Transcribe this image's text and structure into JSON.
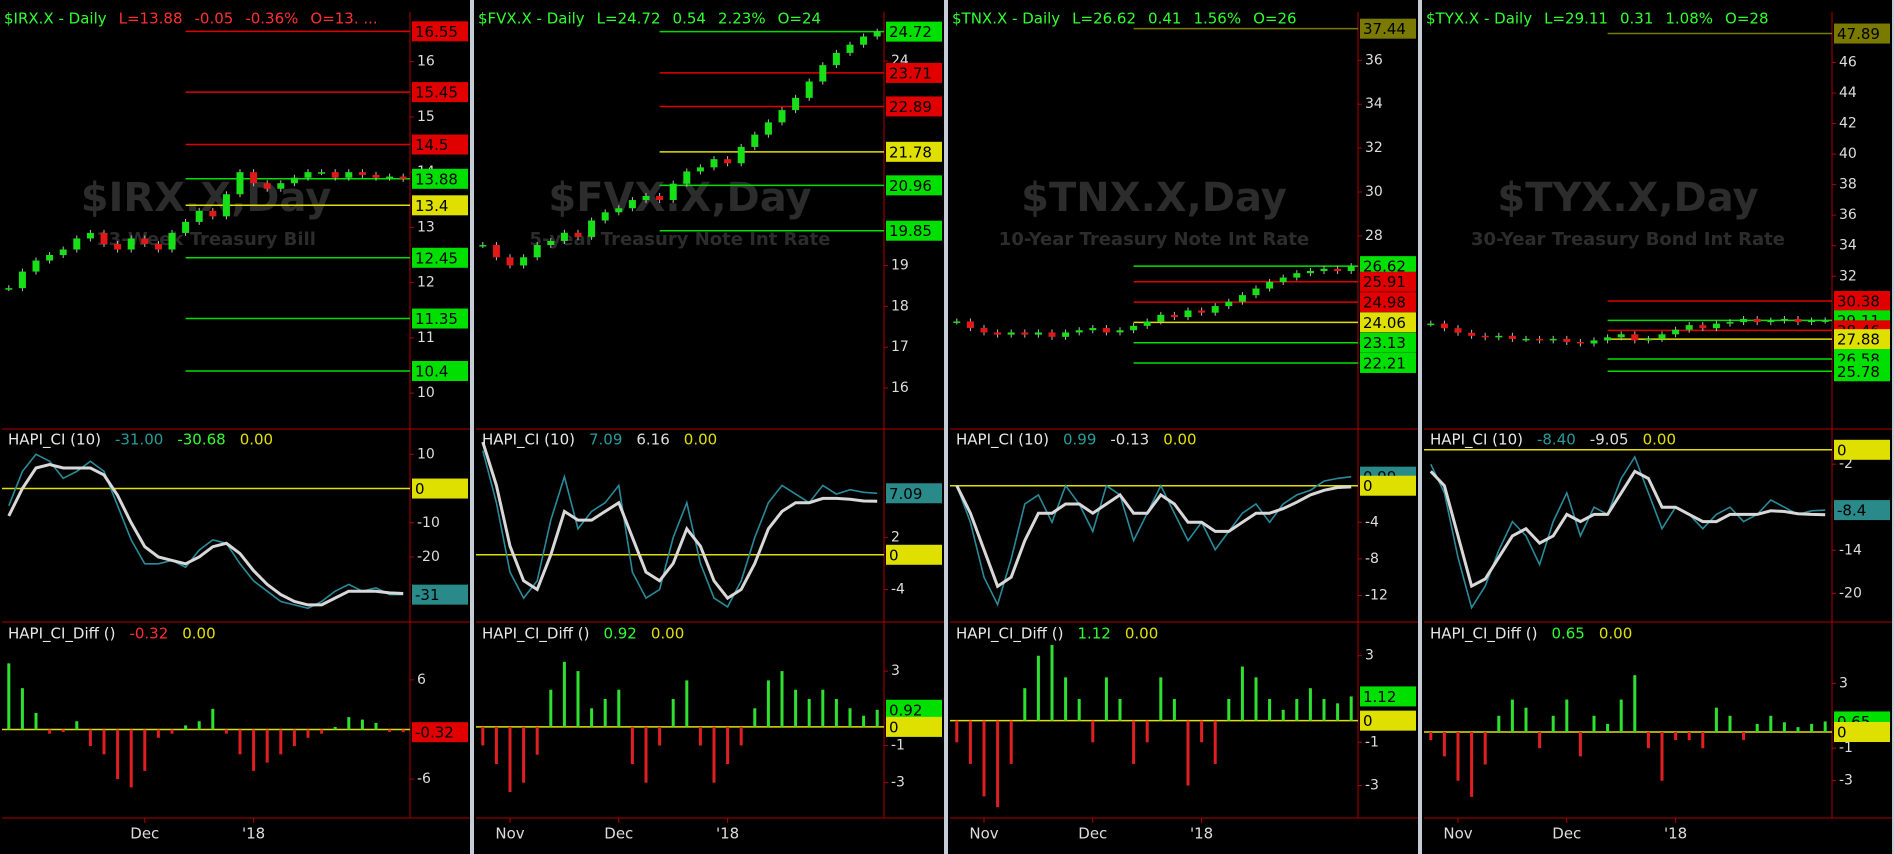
{
  "panels": [
    {
      "header": {
        "symbol": "$IRX.X - Daily",
        "last": "L=13.88",
        "change": "-0.05",
        "pct": "-0.36%",
        "open": "O=13. ...",
        "color": "#ff3030"
      },
      "watermark": "$IRX.X,Day",
      "subtitle": "13-Week Treasury Bill",
      "price": {
        "ylim": [
          9.35,
          16.9
        ],
        "yticks": [
          10,
          11,
          12,
          13,
          14,
          15,
          16
        ],
        "close": [
          11.9,
          12.2,
          12.4,
          12.5,
          12.6,
          12.8,
          12.9,
          12.7,
          12.6,
          12.8,
          12.7,
          12.6,
          12.9,
          13.1,
          13.3,
          13.2,
          13.6,
          14.0,
          13.8,
          13.7,
          13.8,
          13.9,
          14.0,
          14.0,
          13.9,
          14.0,
          13.95,
          13.9,
          13.92,
          13.88
        ],
        "tags": [
          {
            "value": 16.55,
            "color": "#e00000"
          },
          {
            "value": 15.45,
            "color": "#e00000"
          },
          {
            "value": 14.5,
            "color": "#e00000"
          },
          {
            "value": 13.88,
            "color": "#00e000"
          },
          {
            "value": 13.4,
            "color": "#e0e000"
          },
          {
            "value": 12.45,
            "color": "#00e000"
          },
          {
            "value": 11.35,
            "color": "#00e000"
          },
          {
            "value": 10.4,
            "color": "#00e000"
          }
        ]
      },
      "ci": {
        "label": "HAPI_CI (10)",
        "readouts": [
          {
            "text": "-31.00",
            "color": "#2a9a9a"
          },
          {
            "text": "-30.68",
            "color": "#30ff30"
          },
          {
            "text": "0.00",
            "color": "#e0e000"
          }
        ],
        "ylim": [
          -39,
          17.4
        ],
        "yticks": [
          10,
          -10,
          -20
        ],
        "ci": [
          -5,
          5,
          10,
          8,
          3,
          5,
          8,
          5,
          -5,
          -15,
          -22,
          -22,
          -21,
          -23,
          -18,
          -15,
          -16,
          -22,
          -27,
          -30,
          -33,
          -34,
          -35,
          -33,
          -30,
          -28,
          -30,
          -29,
          -31,
          -31
        ],
        "signal": [
          -8,
          0,
          6,
          7,
          6,
          6,
          6,
          4,
          -2,
          -10,
          -17,
          -20,
          -21,
          -22,
          -20,
          -17,
          -16,
          -19,
          -24,
          -28,
          -31,
          -33,
          -34,
          -34,
          -32,
          -30,
          -30,
          -30,
          -30.5,
          -30.68
        ],
        "tags": [
          {
            "value": 0,
            "color": "#e0e000"
          },
          {
            "value": -31,
            "color": "#2a8a8a"
          }
        ]
      },
      "diff": {
        "label": "HAPI_CI_Diff ()",
        "readouts": [
          {
            "text": "-0.32",
            "color": "#ff3030"
          },
          {
            "text": "0.00",
            "color": "#e0e000"
          }
        ],
        "ylim": [
          -10.7,
          10.1
        ],
        "yticks": [
          6,
          -6
        ],
        "values": [
          8,
          5,
          2,
          -0.5,
          -0.3,
          1,
          -2,
          -3,
          -6,
          -7,
          -5,
          -1,
          -0.5,
          0.5,
          1,
          2.5,
          -0.5,
          -3,
          -5,
          -4,
          -3,
          -2,
          -1,
          -0.5,
          0.3,
          1.5,
          1.2,
          0.8,
          -0.3,
          -0.32
        ],
        "tags": [
          {
            "value": -0.32,
            "color": "#e00000"
          }
        ]
      },
      "dates": [
        null,
        null,
        null,
        null,
        null,
        null,
        null,
        null,
        null,
        null,
        "Dec",
        null,
        null,
        null,
        null,
        null,
        null,
        null,
        "'18",
        null,
        null,
        null,
        null,
        null,
        null,
        null,
        null,
        null,
        null,
        null
      ]
    },
    {
      "header": {
        "symbol": "$FVX.X - Daily",
        "last": "L=24.72",
        "change": "0.54",
        "pct": "2.23%",
        "open": "O=24",
        "color": "#30ff30"
      },
      "watermark": "$FVX.X,Day",
      "subtitle": "5-year Treasury Note Int Rate",
      "price": {
        "ylim": [
          15.0,
          25.2
        ],
        "yticks": [
          16,
          17,
          18,
          19,
          24
        ],
        "close": [
          19.5,
          19.2,
          19.0,
          19.2,
          19.5,
          19.6,
          19.8,
          19.7,
          20.1,
          20.3,
          20.4,
          20.6,
          20.7,
          20.6,
          21.0,
          21.3,
          21.4,
          21.6,
          21.5,
          21.9,
          22.2,
          22.5,
          22.8,
          23.1,
          23.5,
          23.9,
          24.2,
          24.4,
          24.6,
          24.72
        ],
        "tags": [
          {
            "value": 24.72,
            "color": "#00e000"
          },
          {
            "value": 23.71,
            "color": "#e00000"
          },
          {
            "value": 22.89,
            "color": "#e00000"
          },
          {
            "value": 21.78,
            "color": "#e0e000"
          },
          {
            "value": 20.96,
            "color": "#00e000"
          },
          {
            "value": 19.85,
            "color": "#00e000"
          }
        ]
      },
      "ci": {
        "label": "HAPI_CI (10)",
        "readouts": [
          {
            "text": "7.09",
            "color": "#2a9a9a"
          },
          {
            "text": "6.16",
            "color": "#dddddd"
          },
          {
            "text": "0.00",
            "color": "#e0e000"
          }
        ],
        "ylim": [
          -7.75,
          14.5
        ],
        "yticks": [
          2,
          -4
        ],
        "ci": [
          12,
          6,
          -2,
          -5,
          -3,
          4,
          9,
          3,
          5,
          6,
          8,
          -2,
          -5,
          -4,
          2,
          6,
          -1,
          -5,
          -6,
          -3,
          2,
          6,
          8,
          7,
          6,
          8,
          7,
          7.5,
          7.2,
          7.09
        ],
        "signal": [
          13,
          8,
          1,
          -3,
          -4,
          0,
          5,
          4,
          4,
          5,
          6,
          2,
          -2,
          -3,
          -1,
          3,
          1,
          -3,
          -5,
          -4,
          -1,
          3,
          5,
          6,
          6,
          6.5,
          6.5,
          6.4,
          6.2,
          6.16
        ],
        "tags": [
          {
            "value": 7.09,
            "color": "#2a8a8a"
          },
          {
            "value": 0,
            "color": "#e0e000"
          }
        ]
      },
      "diff": {
        "label": "HAPI_CI_Diff ()",
        "readouts": [
          {
            "text": "0.92",
            "color": "#30ff30"
          },
          {
            "text": "0.00",
            "color": "#e0e000"
          }
        ],
        "ylim": [
          -4.9,
          4.35
        ],
        "yticks": [
          3,
          -1,
          -3
        ],
        "values": [
          -1,
          -2,
          -3.5,
          -3,
          -1.5,
          2,
          3.5,
          3,
          1,
          1.5,
          2,
          -2,
          -3,
          -1,
          1.5,
          2.5,
          -1,
          -3,
          -2,
          -1,
          1,
          2.5,
          3,
          2,
          1.5,
          2,
          1.5,
          1,
          0.6,
          0.92
        ],
        "tags": [
          {
            "value": 0.92,
            "color": "#00e000"
          },
          {
            "value": 0,
            "color": "#e0e000"
          }
        ]
      },
      "dates": [
        null,
        null,
        "Nov",
        null,
        null,
        null,
        null,
        null,
        null,
        null,
        "Dec",
        null,
        null,
        null,
        null,
        null,
        null,
        null,
        "'18",
        null,
        null,
        null,
        null,
        null,
        null,
        null,
        null,
        null,
        null,
        null
      ]
    },
    {
      "header": {
        "symbol": "$TNX.X - Daily",
        "last": "L=26.62",
        "change": "0.41",
        "pct": "1.56%",
        "open": "O=26",
        "color": "#30ff30"
      },
      "watermark": "$TNX.X,Day",
      "subtitle": "10-Year Treasury Note Int Rate",
      "price": {
        "ylim": [
          19.2,
          38.2
        ],
        "yticks": [
          28,
          30,
          32,
          34,
          36
        ],
        "close": [
          24.1,
          23.8,
          23.6,
          23.5,
          23.6,
          23.5,
          23.6,
          23.4,
          23.6,
          23.7,
          23.8,
          23.6,
          23.7,
          23.9,
          24.1,
          24.4,
          24.3,
          24.6,
          24.5,
          24.8,
          25.0,
          25.3,
          25.6,
          25.9,
          26.1,
          26.3,
          26.4,
          26.5,
          26.4,
          26.62
        ],
        "tags": [
          {
            "value": 37.44,
            "color": "#7a7a00"
          },
          {
            "value": 26.62,
            "color": "#00e000"
          },
          {
            "value": 25.91,
            "color": "#e00000"
          },
          {
            "value": 24.98,
            "color": "#e00000"
          },
          {
            "value": 24.06,
            "color": "#e0e000"
          },
          {
            "value": 23.13,
            "color": "#00e000"
          },
          {
            "value": 22.21,
            "color": "#00e000"
          }
        ]
      },
      "ci": {
        "label": "HAPI_CI (10)",
        "readouts": [
          {
            "text": "0.99",
            "color": "#2a9a9a"
          },
          {
            "text": "-0.13",
            "color": "#dddddd"
          },
          {
            "text": "0.00",
            "color": "#e0e000"
          }
        ],
        "ylim": [
          -14.9,
          6.2
        ],
        "yticks": [
          -4,
          -8,
          -12
        ],
        "ci": [
          0,
          -4,
          -10,
          -13,
          -8,
          -2,
          -1,
          -4,
          0,
          -2,
          -5,
          0,
          -1,
          -6,
          -3,
          0,
          -3,
          -6,
          -4,
          -7,
          -5,
          -3,
          -2,
          -4,
          -2,
          -1,
          -0.5,
          0.5,
          0.8,
          0.99
        ],
        "signal": [
          0,
          -3,
          -7,
          -11,
          -10,
          -6,
          -3,
          -3,
          -2,
          -2,
          -3,
          -2,
          -1,
          -3,
          -3,
          -1,
          -2,
          -4,
          -4,
          -5,
          -5,
          -4,
          -3,
          -3,
          -2.5,
          -1.8,
          -1,
          -0.5,
          -0.2,
          -0.13
        ],
        "tags": [
          {
            "value": 0.99,
            "color": "#2a8a8a"
          },
          {
            "value": 0,
            "color": "#e0e000"
          }
        ]
      },
      "diff": {
        "label": "HAPI_CI_Diff ()",
        "readouts": [
          {
            "text": "1.12",
            "color": "#30ff30"
          },
          {
            "text": "0.00",
            "color": "#e0e000"
          }
        ],
        "ylim": [
          -4.5,
          3.45
        ],
        "yticks": [
          3,
          -1,
          -3
        ],
        "values": [
          -1,
          -2,
          -3.5,
          -4,
          -2,
          1.5,
          3,
          3.5,
          2,
          1,
          -1,
          2,
          1,
          -2,
          -1,
          2,
          1,
          -3,
          -1,
          -2,
          1,
          2.5,
          2,
          1,
          0.5,
          1,
          1.5,
          1,
          0.8,
          1.12
        ],
        "tags": [
          {
            "value": 1.12,
            "color": "#00e000"
          },
          {
            "value": 0,
            "color": "#e0e000"
          }
        ]
      },
      "dates": [
        null,
        null,
        "Nov",
        null,
        null,
        null,
        null,
        null,
        null,
        null,
        "Dec",
        null,
        null,
        null,
        null,
        null,
        null,
        null,
        "'18",
        null,
        null,
        null,
        null,
        null,
        null,
        null,
        null,
        null,
        null,
        null
      ]
    },
    {
      "header": {
        "symbol": "$TYX.X - Daily",
        "last": "L=29.11",
        "change": "0.31",
        "pct": "1.08%",
        "open": "O=28",
        "color": "#30ff30"
      },
      "watermark": "$TYX.X,Day",
      "subtitle": "30-Year Treasury Bond Int Rate",
      "price": {
        "ylim": [
          22.0,
          49.3
        ],
        "yticks": [
          32,
          34,
          36,
          38,
          40,
          42,
          44,
          46
        ],
        "close": [
          28.9,
          28.6,
          28.3,
          28.1,
          28.0,
          28.1,
          27.9,
          27.9,
          27.8,
          27.9,
          27.7,
          27.6,
          27.8,
          28.0,
          28.2,
          27.8,
          27.9,
          28.2,
          28.5,
          28.8,
          28.6,
          28.9,
          29.0,
          29.2,
          29.0,
          29.1,
          29.2,
          29.0,
          29.1,
          29.11
        ],
        "tags": [
          {
            "value": 47.89,
            "color": "#7a7a00"
          },
          {
            "value": 30.38,
            "color": "#e00000"
          },
          {
            "value": 29.11,
            "color": "#00e000"
          },
          {
            "value": 28.46,
            "color": "#e00000"
          },
          {
            "value": 27.88,
            "color": "#e0e000"
          },
          {
            "value": 26.58,
            "color": "#00e000"
          },
          {
            "value": 25.78,
            "color": "#00e000"
          }
        ]
      },
      "ci": {
        "label": "HAPI_CI (10)",
        "readouts": [
          {
            "text": "-8.40",
            "color": "#2a9a9a"
          },
          {
            "text": "-9.05",
            "color": "#dddddd"
          },
          {
            "text": "0.00",
            "color": "#e0e000"
          }
        ],
        "ylim": [
          -24,
          2.9
        ],
        "yticks": [
          -2,
          -14,
          -20
        ],
        "ci": [
          -2,
          -6,
          -15,
          -22,
          -19,
          -14,
          -10,
          -12,
          -16,
          -10,
          -6,
          -12,
          -8,
          -9,
          -4,
          -1,
          -6,
          -11,
          -8,
          -9,
          -11,
          -9,
          -8,
          -10,
          -9,
          -7,
          -8,
          -9,
          -8.5,
          -8.4
        ],
        "signal": [
          -3,
          -5,
          -12,
          -19,
          -18,
          -15,
          -12,
          -11,
          -13,
          -12,
          -9,
          -10,
          -9,
          -9,
          -6,
          -3,
          -4,
          -8,
          -8,
          -9,
          -10,
          -10,
          -9,
          -9,
          -9,
          -8.5,
          -8.6,
          -8.9,
          -9.0,
          -9.05
        ],
        "tags": [
          {
            "value": 0,
            "color": "#e0e000"
          },
          {
            "value": -8.4,
            "color": "#2a8a8a"
          }
        ]
      },
      "diff": {
        "label": "HAPI_CI_Diff ()",
        "readouts": [
          {
            "text": "0.65",
            "color": "#30ff30"
          },
          {
            "text": "0.00",
            "color": "#e0e000"
          }
        ],
        "ylim": [
          -5.3,
          5.3
        ],
        "yticks": [
          3,
          -1,
          -3
        ],
        "values": [
          -0.5,
          -1.5,
          -3,
          -4,
          -2,
          1,
          2,
          1.5,
          -1,
          1,
          2,
          -1.5,
          1,
          0.5,
          2,
          3.5,
          -1,
          -3,
          -0.5,
          -0.5,
          -1,
          1.5,
          1,
          -0.5,
          0.5,
          1,
          0.6,
          0.3,
          0.5,
          0.65
        ],
        "tags": [
          {
            "value": 0.65,
            "color": "#00e000"
          },
          {
            "value": 0,
            "color": "#e0e000"
          }
        ]
      },
      "dates": [
        null,
        null,
        "Nov",
        null,
        null,
        null,
        null,
        null,
        null,
        null,
        "Dec",
        null,
        null,
        null,
        null,
        null,
        null,
        null,
        "'18",
        null,
        null,
        null,
        null,
        null,
        null,
        null,
        null,
        null,
        null,
        null
      ]
    }
  ]
}
